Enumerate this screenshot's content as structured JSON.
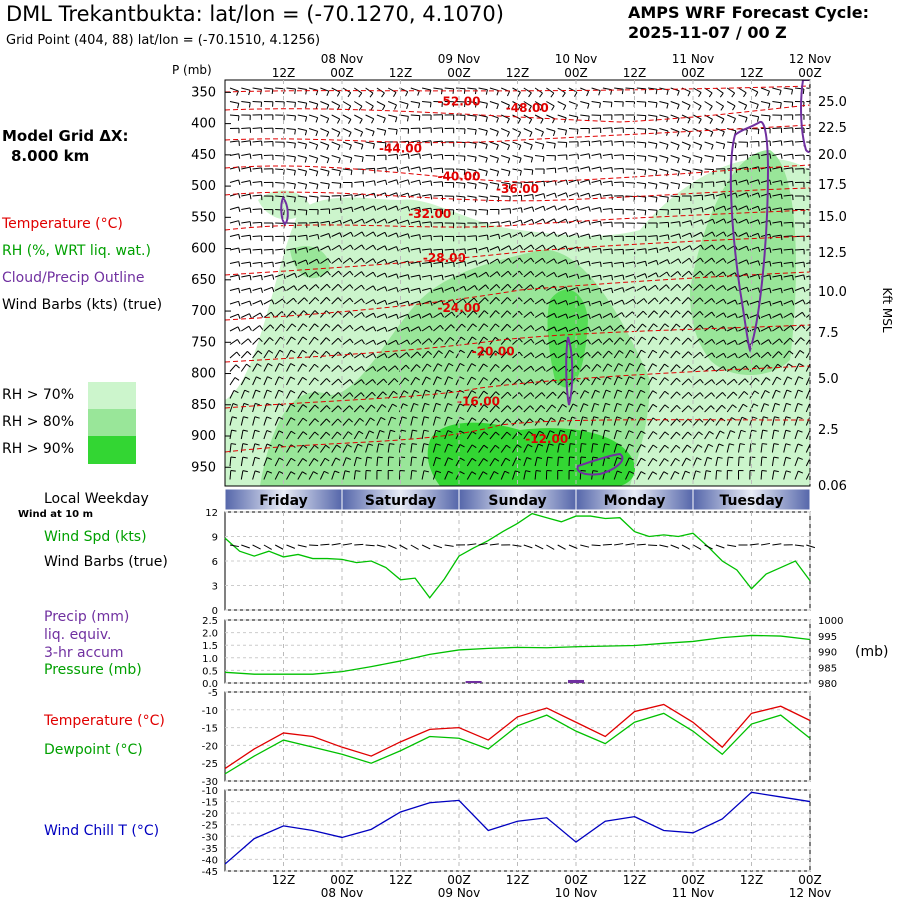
{
  "header": {
    "title": "DML Trekantbukta:  lat/lon = (-70.1270, 4.1070)",
    "subtitle": "Grid Point (404, 88) lat/lon = (-70.1510, 4.1256)",
    "cycle_line1": "AMPS WRF Forecast Cycle:",
    "cycle_line2": "2025-11-07 / 00  Z",
    "grid_dx_line1": "Model Grid ΔX:",
    "grid_dx_line2": "8.000 km"
  },
  "legend": {
    "temperature": "Temperature (°C)",
    "rh": "RH (%, WRT liq. wat.)",
    "cloud": "Cloud/Precip Outline",
    "wind": "Wind Barbs (kts) (true)",
    "rh70": "RH > 70%",
    "rh80": "RH > 80%",
    "rh90": "RH > 90%",
    "local_weekday": "Local Weekday",
    "wind_at": "Wind at 10 m",
    "wind_spd": "Wind Spd (kts)",
    "wind_barbs2": "Wind Barbs (true)",
    "precip1": "Precip (mm)",
    "precip2": "liq. equiv.",
    "precip3": "3-hr accum",
    "pressure": "Pressure (mb)",
    "pressure_unit": "(mb)",
    "temp2": "Temperature (°C)",
    "dewpoint": "Dewpoint (°C)",
    "windchill": "Wind Chill T (°C)"
  },
  "colors": {
    "temperature": "#e00000",
    "rh70": "#ccf5cc",
    "rh80": "#99e699",
    "rh90": "#33d633",
    "cloud": "#7030a0",
    "wind_speed": "#00c000",
    "dewpoint": "#00c000",
    "windchill": "#0000c0",
    "precip": "#7030a0",
    "day_band": "#5566aa"
  },
  "chart_data": [
    {
      "type": "heatmap",
      "panel": "cross-section",
      "ylabel_left": "P (mb)",
      "ylabel_right": "Kft MSL",
      "xaxis_time_labels": [
        "12Z",
        "00Z",
        "12Z",
        "00Z",
        "12Z",
        "00Z",
        "12Z",
        "00Z",
        "12Z",
        "00Z"
      ],
      "xaxis_date_labels": [
        "08 Nov",
        "09 Nov",
        "10 Nov",
        "11 Nov",
        "12 Nov"
      ],
      "x_hours": [
        12,
        24,
        36,
        48,
        60,
        72,
        84,
        96,
        108,
        120
      ],
      "date_hours": [
        24,
        48,
        72,
        96,
        120
      ],
      "x_range_hours": [
        0,
        120
      ],
      "pressure_ticks": [
        350,
        400,
        450,
        500,
        550,
        600,
        650,
        700,
        750,
        800,
        850,
        900,
        950
      ],
      "height_ticks_kft": [
        "25.0",
        "22.5",
        "20.0",
        "17.5",
        "15.0",
        "12.5",
        "10.0",
        "7.5",
        "5.0",
        "2.5",
        "0.06"
      ],
      "temperature_contours": [
        {
          "label": "-52.00",
          "hour": 48,
          "p": 365
        },
        {
          "label": "-48.00",
          "hour": 62,
          "p": 375
        },
        {
          "label": "-44.00",
          "hour": 36,
          "p": 440
        },
        {
          "label": "-40.00",
          "hour": 48,
          "p": 485
        },
        {
          "label": "-36.00",
          "hour": 60,
          "p": 505
        },
        {
          "label": "-32.00",
          "hour": 42,
          "p": 545
        },
        {
          "label": "-28.00",
          "hour": 45,
          "p": 615
        },
        {
          "label": "-24.00",
          "hour": 48,
          "p": 695
        },
        {
          "label": "-20.00",
          "hour": 55,
          "p": 765
        },
        {
          "label": "-16.00",
          "hour": 52,
          "p": 845
        },
        {
          "label": "-12.00",
          "hour": 66,
          "p": 905
        }
      ]
    },
    {
      "type": "line",
      "panel": "wind-speed",
      "ylabel": "Wind Spd (kts)",
      "yticks": [
        0,
        3,
        6,
        9,
        12
      ],
      "ylim": [
        0,
        12
      ],
      "day_labels": [
        "Friday",
        "Saturday",
        "Sunday",
        "Monday",
        "Tuesday"
      ],
      "x": [
        0,
        3,
        6,
        9,
        12,
        15,
        18,
        21,
        24,
        27,
        30,
        33,
        36,
        39,
        42,
        45,
        48,
        51,
        54,
        57,
        60,
        63,
        66,
        69,
        72,
        75,
        78,
        81,
        84,
        87,
        90,
        93,
        96,
        99,
        102,
        105,
        108,
        111,
        114,
        117,
        120
      ],
      "series": [
        {
          "values": [
            8.8,
            7.2,
            6.6,
            7.2,
            6.5,
            6.8,
            6.3,
            6.3,
            6.2,
            5.8,
            6.0,
            5.2,
            3.7,
            3.9,
            1.5,
            3.8,
            6.6,
            7.6,
            8.5,
            9.6,
            10.6,
            11.8,
            11.3,
            10.8,
            11.5,
            11.5,
            11.2,
            11.3,
            9.6,
            9.0,
            9.2,
            9.0,
            9.4,
            7.8,
            6.0,
            4.9,
            2.6,
            4.4,
            5.2,
            6.0,
            3.6
          ]
        }
      ]
    },
    {
      "type": "line",
      "panel": "precip-pressure",
      "yticks_left": [
        "0.0",
        "0.5",
        "1.0",
        "1.5",
        "2.0",
        "2.5"
      ],
      "ylim_left": [
        0,
        2.5
      ],
      "yticks_right": [
        980,
        985,
        990,
        995,
        1000
      ],
      "ylim_right": [
        980,
        1000
      ],
      "x": [
        0,
        6,
        12,
        18,
        24,
        30,
        36,
        42,
        48,
        54,
        60,
        66,
        72,
        78,
        84,
        90,
        96,
        102,
        108,
        114,
        120
      ],
      "series": [
        {
          "values": [
            983.4,
            982.8,
            982.8,
            982.8,
            983.6,
            985.2,
            987.0,
            989.1,
            990.5,
            991.0,
            991.3,
            991.2,
            991.5,
            991.7,
            991.9,
            992.6,
            993.2,
            994.4,
            995.1,
            994.9,
            993.8
          ]
        }
      ],
      "precip_bars": [
        {
          "hour": 51,
          "value": 0.05
        },
        {
          "hour": 72,
          "value": 0.12
        }
      ]
    },
    {
      "type": "line",
      "panel": "temperature-dewpoint",
      "yticks": [
        -30,
        -25,
        -20,
        -15,
        -10,
        -5
      ],
      "ylim": [
        -30,
        -5
      ],
      "x": [
        0,
        6,
        12,
        18,
        24,
        30,
        36,
        42,
        48,
        54,
        60,
        66,
        72,
        78,
        84,
        90,
        96,
        102,
        108,
        114,
        120
      ],
      "series": [
        {
          "values": [
            -26.5,
            -21.0,
            -16.5,
            -17.5,
            -20.5,
            -23.0,
            -19.0,
            -15.5,
            -15.0,
            -18.5,
            -12.0,
            -9.5,
            -13.5,
            -17.5,
            -10.5,
            -8.5,
            -13.5,
            -20.5,
            -11.0,
            -9.0,
            -13.0
          ]
        },
        {
          "values": [
            -28.0,
            -23.0,
            -18.5,
            -20.5,
            -22.5,
            -25.0,
            -21.5,
            -17.5,
            -18.0,
            -21.0,
            -14.5,
            -11.5,
            -16.0,
            -19.5,
            -13.5,
            -11.0,
            -16.0,
            -22.5,
            -14.0,
            -11.5,
            -18.0
          ]
        }
      ]
    },
    {
      "type": "line",
      "panel": "wind-chill",
      "yticks": [
        -45,
        -40,
        -35,
        -30,
        -25,
        -20,
        -15,
        -10
      ],
      "ylim": [
        -45,
        -10
      ],
      "x": [
        0,
        6,
        12,
        18,
        24,
        30,
        36,
        42,
        48,
        54,
        60,
        66,
        72,
        78,
        84,
        90,
        96,
        102,
        108,
        114,
        120
      ],
      "series": [
        {
          "values": [
            -42.0,
            -31.0,
            -25.5,
            -27.5,
            -30.5,
            -27.0,
            -19.5,
            -15.5,
            -14.5,
            -27.5,
            -23.5,
            -22.0,
            -32.5,
            -23.5,
            -21.5,
            -27.5,
            -28.5,
            -22.5,
            -11.0,
            -13.0,
            -15.0
          ]
        }
      ]
    }
  ]
}
